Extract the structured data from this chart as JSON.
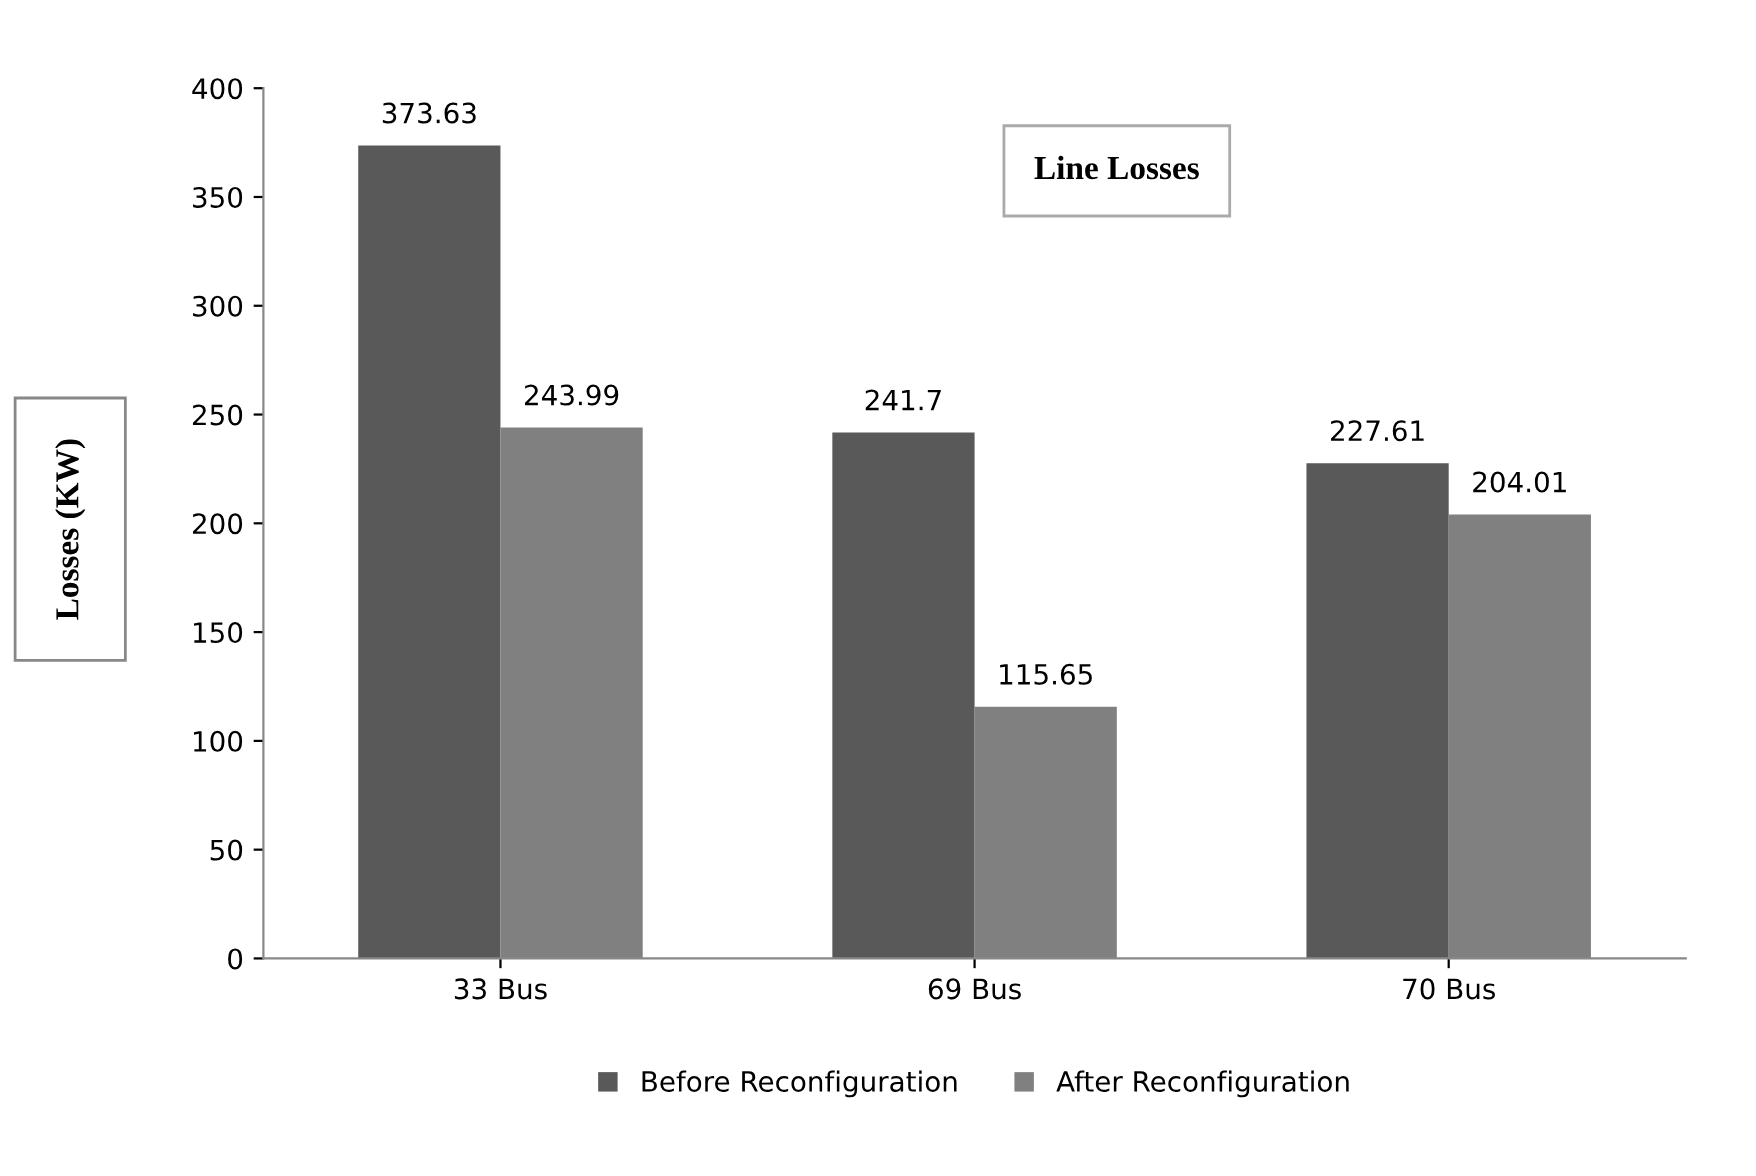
{
  "chart_data": {
    "type": "bar",
    "title": "Line Losses",
    "ylabel": "Losses (KW)",
    "categories": [
      "33 Bus",
      "69 Bus",
      "70 Bus"
    ],
    "series": [
      {
        "name": "Before Reconfiguration",
        "color": "#595959",
        "values": [
          373.63,
          241.7,
          227.61
        ]
      },
      {
        "name": "After Reconfiguration",
        "color": "#808080",
        "values": [
          243.99,
          115.65,
          204.01
        ]
      }
    ],
    "ylim": [
      0,
      400
    ],
    "yticks": [
      0,
      50,
      100,
      150,
      200,
      250,
      300,
      350,
      400
    ],
    "data_labels": true,
    "grid": false,
    "legend": "bottom"
  }
}
